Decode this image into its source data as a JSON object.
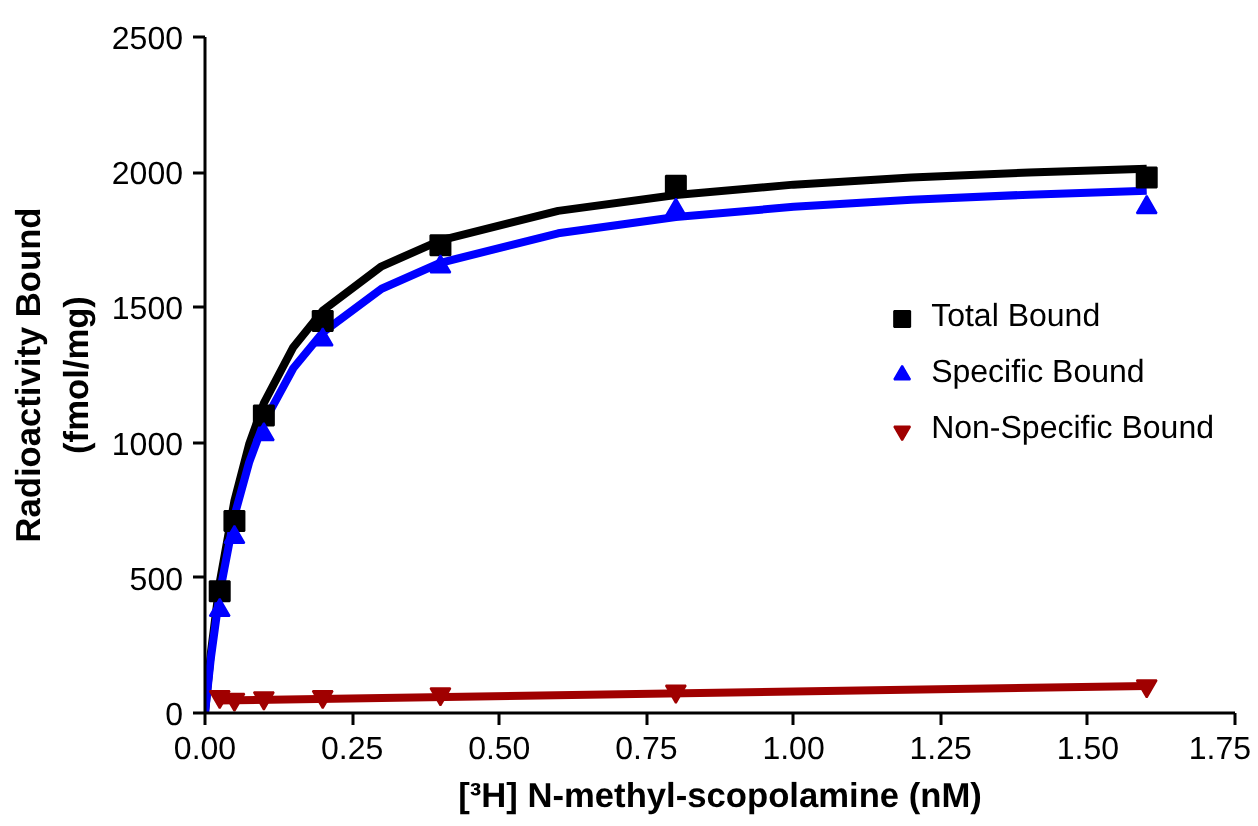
{
  "chart_data": {
    "type": "scatter",
    "xlabel": "[³H] N-methyl-scopolamine (nM)",
    "ylabel": "Radioactivity Bound\n(fmol/mg)",
    "xlim": [
      0,
      1.75
    ],
    "xticks": [
      {
        "value": 0,
        "label": "0.00"
      },
      0.25,
      {
        "value": 0.5,
        "label": "0.50"
      },
      0.75,
      {
        "value": 1,
        "label": "1.00"
      },
      1.25,
      {
        "value": 1.5,
        "label": "1.50"
      },
      1.75
    ],
    "ylim": [
      0,
      2500
    ],
    "yticks": [
      0,
      500,
      1000,
      1500,
      2000,
      2500
    ],
    "grid": false,
    "legend": "right",
    "series": [
      {
        "type": "line",
        "color": "#000000",
        "x": [
          0,
          0.01,
          0.025,
          0.05,
          0.075,
          0.1,
          0.15,
          0.2,
          0.3,
          0.4,
          0.6,
          0.8,
          1.0,
          1.2,
          1.4,
          1.6
        ],
        "values": [
          0,
          223,
          482,
          785,
          994,
          1146,
          1353,
          1488,
          1652,
          1748,
          1857,
          1916,
          1954,
          1980,
          1999,
          2013
        ]
      },
      {
        "type": "line",
        "color": "#0000ff",
        "x": [
          0,
          0.01,
          0.025,
          0.05,
          0.075,
          0.1,
          0.15,
          0.2,
          0.3,
          0.4,
          0.6,
          0.8,
          1.0,
          1.2,
          1.4,
          1.6
        ],
        "values": [
          0,
          204,
          443,
          729,
          927,
          1074,
          1275,
          1407,
          1569,
          1665,
          1774,
          1834,
          1872,
          1898,
          1917,
          1931
        ]
      },
      {
        "type": "line",
        "color": "#a00000",
        "x": [
          0.02,
          1.6
        ],
        "values": [
          46,
          100
        ]
      },
      {
        "name": "Total Bound",
        "marker": "square",
        "color": "#000000",
        "x": [
          0.025,
          0.05,
          0.1,
          0.2,
          0.4,
          0.8,
          1.6
        ],
        "values": [
          450,
          710,
          1100,
          1450,
          1730,
          1950,
          1980
        ]
      },
      {
        "name": "Specific Bound",
        "marker": "triangle",
        "color": "#0000ff",
        "x": [
          0.025,
          0.05,
          0.1,
          0.2,
          0.4,
          0.8,
          1.6
        ],
        "values": [
          380,
          650,
          1030,
          1380,
          1650,
          1860,
          1870
        ]
      },
      {
        "name": "Non-Specific Bound",
        "color": "#a00000",
        "x": [
          0.025,
          0.05,
          0.1,
          0.2,
          0.4,
          0.8,
          1.6
        ],
        "values": [
          60,
          50,
          55,
          60,
          70,
          80,
          100
        ]
      }
    ]
  }
}
